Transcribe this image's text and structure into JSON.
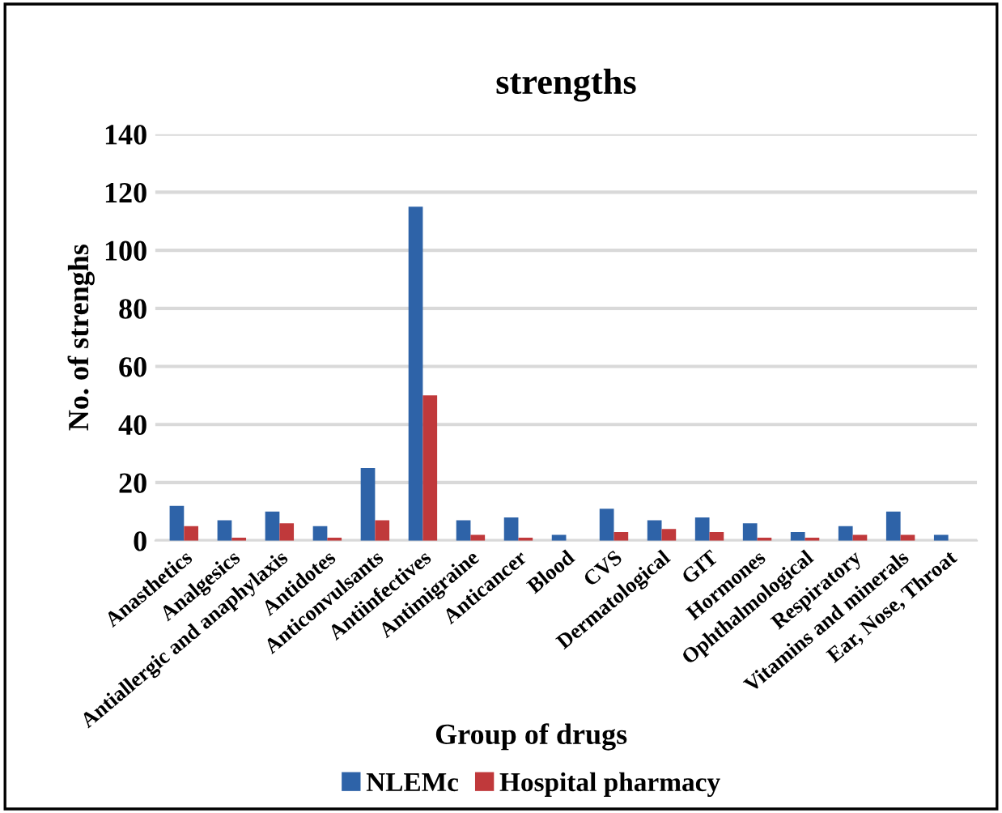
{
  "chart_data": {
    "type": "bar",
    "title": "strengths",
    "xlabel": "Group of drugs",
    "ylabel": "No. of strenghs",
    "categories": [
      "Anasthetics",
      "Analgesics",
      "Antiallergic and anaphylaxis",
      "Antidotes",
      "Anticonvulsants",
      "Antiinfectives",
      "Antimigraine",
      "Anticancer",
      "Blood",
      "CVS",
      "Dermatological",
      "GIT",
      "Hormones",
      "Ophthalmological",
      "Respiratory",
      "Vitamins and minerals",
      "Ear, Nose, Throat"
    ],
    "series": [
      {
        "name": "NLEMc",
        "color": "#2e63a8",
        "values": [
          12,
          7,
          10,
          5,
          25,
          115,
          7,
          8,
          2,
          11,
          7,
          8,
          6,
          3,
          5,
          10,
          2
        ]
      },
      {
        "name": "Hospital pharmacy",
        "color": "#c0393b",
        "values": [
          5,
          1,
          6,
          1,
          7,
          50,
          2,
          1,
          0,
          3,
          4,
          3,
          1,
          1,
          2,
          2,
          0
        ]
      }
    ],
    "ylim": [
      0,
      140
    ],
    "yticks": [
      0,
      20,
      40,
      60,
      80,
      100,
      120,
      140
    ],
    "grid": "y",
    "legend": "bottom"
  }
}
